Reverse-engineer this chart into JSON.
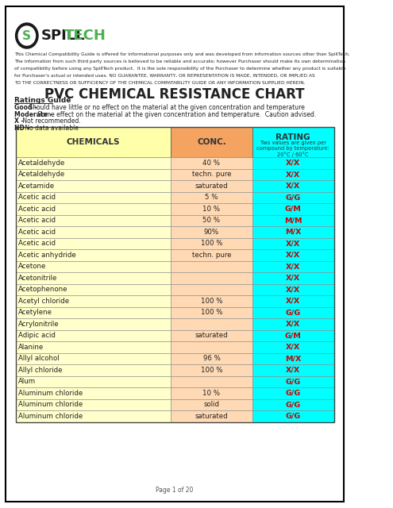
{
  "page_bg": "#ffffff",
  "border_color": "#000000",
  "title": "PVC CHEMICAL RESISTANCE CHART",
  "subtitle_lines": [
    "This Chemical Compatibility Guide is offered for informational purposes only and was developed from information sources other than SpillTech.",
    "The information from such third party sources is believed to be reliable and accurate; however Purchaser should make its own determination",
    "of compatibility before using any SpillTech product.  It is the sole responsibility of the Purchaser to determine whether any product is suitable",
    "for Purchaser's actual or intended uses. NO GUARANTEE, WARRANTY, OR REPRESENTATION IS MADE, INTENDED, OR IMPLIED AS",
    "TO THE CORRECTNESS OR SUFFICIENCY OF THE CHEMICAL COMPATABILITY GUIDE OR ANY INFORMATION SUPPLIED HEREIN."
  ],
  "ratings_guide_title": "Ratings Guide",
  "ratings_guide_lines": [
    "Good – Should have little or no effect on the material at the given concentration and temperature",
    "Moderate – Some effect on the material at the given concentration and temperature.  Caution advised.",
    "X – Not recommended.",
    "ND – No data available"
  ],
  "col_headers": [
    "CHEMICALS",
    "CONC.",
    "RATING"
  ],
  "rating_subtext": "Two values are given per\ncompound by temperature:\n20°C / 60°C",
  "header_bg_chem": "#ffffaa",
  "header_bg_conc": "#f4a460",
  "header_bg_rating": "#00ffff",
  "row_bg_chem": "#ffffcc",
  "row_bg_conc": "#ffd9b3",
  "row_bg_rating": "#00ffff",
  "rows": [
    [
      "Acetaldehyde",
      "40 %",
      "X/X"
    ],
    [
      "Acetaldehyde",
      "techn. pure",
      "X/X"
    ],
    [
      "Acetamide",
      "saturated",
      "X/X"
    ],
    [
      "Acetic acid",
      "5 %",
      "G/G"
    ],
    [
      "Acetic acid",
      "10 %",
      "G/M"
    ],
    [
      "Acetic acid",
      "50 %",
      "M/M"
    ],
    [
      "Acetic acid",
      "90%",
      "M/X"
    ],
    [
      "Acetic acid",
      "100 %",
      "X/X"
    ],
    [
      "Acetic anhydride",
      "techn. pure",
      "X/X"
    ],
    [
      "Acetone",
      "",
      "X/X"
    ],
    [
      "Acetonitrile",
      "",
      "X/X"
    ],
    [
      "Acetophenone",
      "",
      "X/X"
    ],
    [
      "Acetyl chloride",
      "100 %",
      "X/X"
    ],
    [
      "Acetylene",
      "100 %",
      "G/G"
    ],
    [
      "Acrylonitrile",
      "",
      "X/X"
    ],
    [
      "Adipic acid",
      "saturated",
      "G/M"
    ],
    [
      "Alanine",
      "",
      "X/X"
    ],
    [
      "Allyl alcohol",
      "96 %",
      "M/X"
    ],
    [
      "Allyl chloride",
      "100 %",
      "X/X"
    ],
    [
      "Alum",
      "",
      "G/G"
    ],
    [
      "Aluminum chloride",
      "10 %",
      "G/G"
    ],
    [
      "Aluminum chloride",
      "solid",
      "G/G"
    ],
    [
      "Aluminum chloride",
      "saturated",
      "G/G"
    ]
  ],
  "page_label": "Page 1 of 20",
  "logo_text_spill": "SPILL",
  "logo_text_tech": "TECH"
}
